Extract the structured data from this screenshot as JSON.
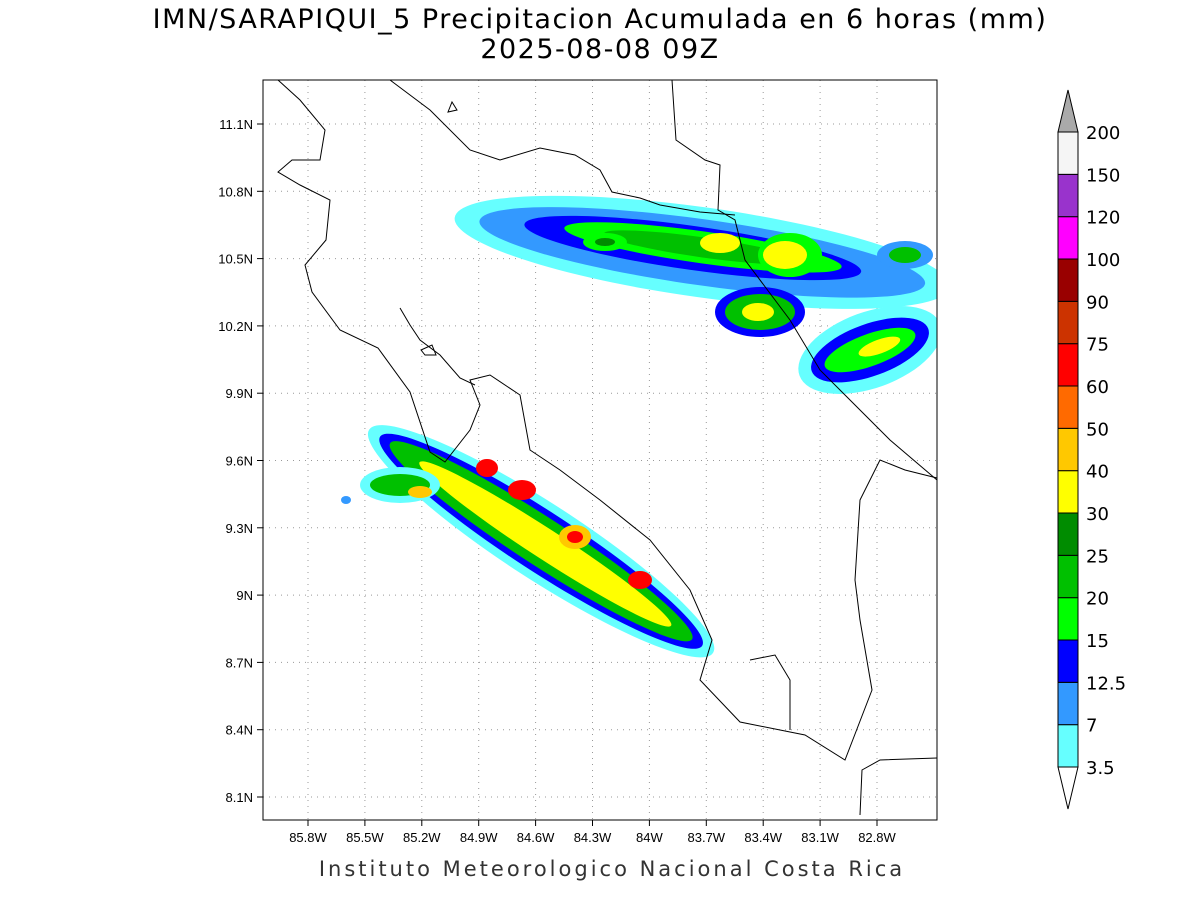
{
  "title": "IMN/SARAPIQUI_5 Precipitacion Acumulada en 6 horas (mm)",
  "subtitle": "2025-08-08 09Z",
  "footer": "Instituto Meteorologico Nacional Costa Rica",
  "map": {
    "lon_labels": [
      "85.8W",
      "85.5W",
      "85.2W",
      "84.9W",
      "84.6W",
      "84.3W",
      "84W",
      "83.7W",
      "83.4W",
      "83.1W",
      "82.8W"
    ],
    "lat_labels": [
      "11.1N",
      "10.8N",
      "10.5N",
      "10.2N",
      "9.9N",
      "9.6N",
      "9.3N",
      "9N",
      "8.7N",
      "8.4N",
      "8.1N"
    ]
  },
  "colorbar": {
    "labels": [
      "3.5",
      "7",
      "12.5",
      "15",
      "20",
      "25",
      "30",
      "40",
      "50",
      "60",
      "75",
      "90",
      "100",
      "120",
      "150",
      "200"
    ],
    "colors": [
      "#66ffff",
      "#3399ff",
      "#0000ff",
      "#00ff00",
      "#00c000",
      "#008c00",
      "#ffff00",
      "#ffc800",
      "#ff6a00",
      "#ff0000",
      "#cc3300",
      "#990000",
      "#ff00ff",
      "#9933cc",
      "#f5f5f5"
    ],
    "below_color": "#ffffff",
    "above_color": "#aaaaaa"
  }
}
